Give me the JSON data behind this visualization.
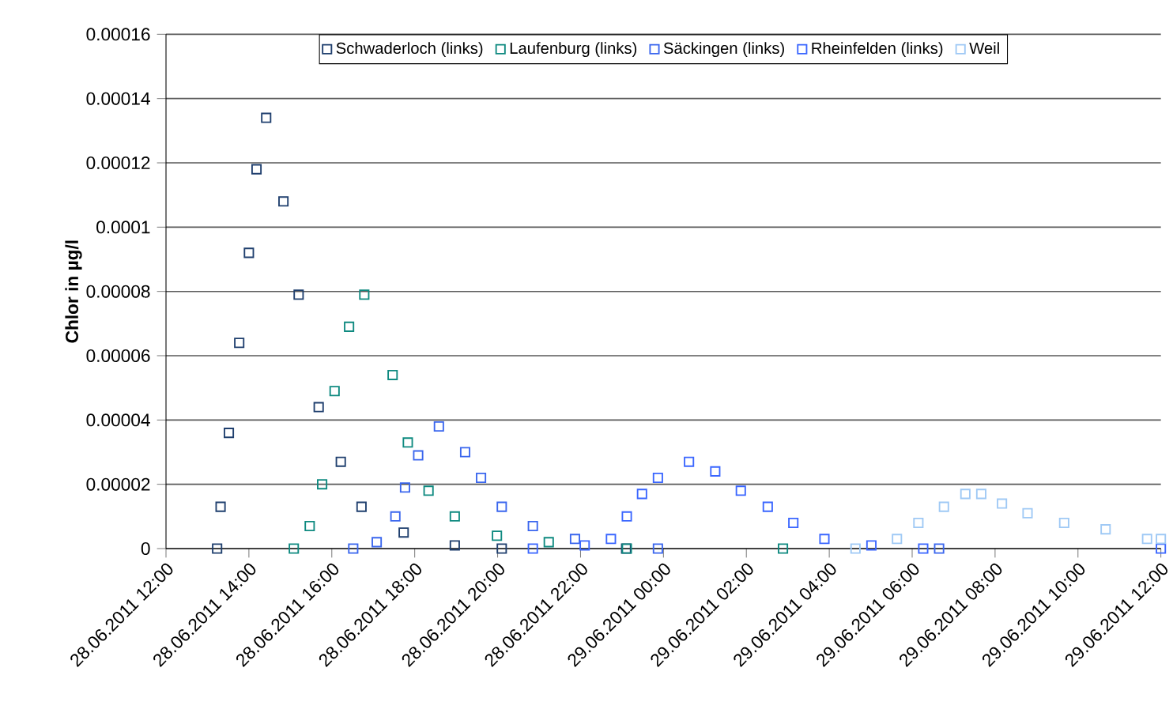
{
  "chart_data": {
    "type": "scatter",
    "ylabel": "Chlor in µg/l",
    "xlim": [
      "2011-06-28T12:00",
      "2011-06-29T12:00"
    ],
    "ylim": [
      0,
      0.00016
    ],
    "xticks": [
      {
        "value": "2011-06-28T12:00",
        "label": "28.06.2011 12:00"
      },
      {
        "value": "2011-06-28T14:00",
        "label": "28.06.2011 14:00"
      },
      {
        "value": "2011-06-28T16:00",
        "label": "28.06.2011 16:00"
      },
      {
        "value": "2011-06-28T18:00",
        "label": "28.06.2011 18:00"
      },
      {
        "value": "2011-06-28T20:00",
        "label": "28.06.2011 20:00"
      },
      {
        "value": "2011-06-28T22:00",
        "label": "28.06.2011 22:00"
      },
      {
        "value": "2011-06-29T00:00",
        "label": "29.06.2011 00:00"
      },
      {
        "value": "2011-06-29T02:00",
        "label": "29.06.2011 02:00"
      },
      {
        "value": "2011-06-29T04:00",
        "label": "29.06.2011 04:00"
      },
      {
        "value": "2011-06-29T06:00",
        "label": "29.06.2011 06:00"
      },
      {
        "value": "2011-06-29T08:00",
        "label": "29.06.2011 08:00"
      },
      {
        "value": "2011-06-29T10:00",
        "label": "29.06.2011 10:00"
      },
      {
        "value": "2011-06-29T12:00",
        "label": "29.06.2011 12:00"
      }
    ],
    "yticks": [
      0,
      {
        "value": 2e-05,
        "label": "0.00002"
      },
      {
        "value": 4e-05,
        "label": "0.00004"
      },
      {
        "value": 6e-05,
        "label": "0.00006"
      },
      {
        "value": 8e-05,
        "label": "0.00008"
      },
      0.0001,
      0.00012,
      0.00014,
      0.00016
    ],
    "grid": "y",
    "legend": "top",
    "marker": "square",
    "series": [
      {
        "name": "Schwaderloch (links)",
        "color": "#1f3f6e",
        "x": [
          "2011-06-28T13:14",
          "2011-06-28T13:19",
          "2011-06-28T13:31",
          "2011-06-28T13:46",
          "2011-06-28T14:00",
          "2011-06-28T14:11",
          "2011-06-28T14:25",
          "2011-06-28T14:50",
          "2011-06-28T15:12",
          "2011-06-28T15:41",
          "2011-06-28T16:13",
          "2011-06-28T16:43",
          "2011-06-28T17:44",
          "2011-06-28T18:58",
          "2011-06-28T20:06",
          "2011-06-28T23:06"
        ],
        "values": [
          0,
          1.3e-05,
          3.6e-05,
          6.4e-05,
          9.2e-05,
          0.000118,
          0.000134,
          0.000108,
          7.9e-05,
          4.4e-05,
          2.7e-05,
          1.3e-05,
          5e-06,
          1e-06,
          0,
          0
        ]
      },
      {
        "name": "Laufenburg (links)",
        "color": "#0f8a80",
        "x": [
          "2011-06-28T15:05",
          "2011-06-28T15:28",
          "2011-06-28T15:46",
          "2011-06-28T16:04",
          "2011-06-28T16:25",
          "2011-06-28T16:47",
          "2011-06-28T17:28",
          "2011-06-28T17:50",
          "2011-06-28T18:20",
          "2011-06-28T18:58",
          "2011-06-28T19:59",
          "2011-06-28T21:14",
          "2011-06-28T23:07",
          "2011-06-29T02:53"
        ],
        "values": [
          0,
          7e-06,
          2e-05,
          4.9e-05,
          6.9e-05,
          7.9e-05,
          5.4e-05,
          3.3e-05,
          1.8e-05,
          1e-05,
          4e-06,
          2e-06,
          0,
          0
        ]
      },
      {
        "name": "Säckingen (links)",
        "color": "#3a66ee",
        "x": [
          "2011-06-28T16:31",
          "2011-06-28T17:05",
          "2011-06-28T17:32",
          "2011-06-28T17:46",
          "2011-06-28T18:05",
          "2011-06-28T18:35",
          "2011-06-28T19:13",
          "2011-06-28T19:36",
          "2011-06-28T20:06",
          "2011-06-28T20:51",
          "2011-06-28T21:52",
          "2011-06-28T23:52",
          "2011-06-29T06:39"
        ],
        "values": [
          0,
          2e-06,
          1e-05,
          1.9e-05,
          2.9e-05,
          3.8e-05,
          3e-05,
          2.2e-05,
          1.3e-05,
          7e-06,
          3e-06,
          0,
          0
        ]
      },
      {
        "name": "Rheinfelden (links)",
        "color": "#3a66ff",
        "x": [
          "2011-06-28T20:51",
          "2011-06-28T22:06",
          "2011-06-28T22:44",
          "2011-06-28T23:07",
          "2011-06-28T23:29",
          "2011-06-28T23:52",
          "2011-06-29T00:37",
          "2011-06-29T01:15",
          "2011-06-29T01:52",
          "2011-06-29T02:31",
          "2011-06-29T03:08",
          "2011-06-29T03:53",
          "2011-06-29T05:01",
          "2011-06-29T06:16",
          "2011-06-29T12:00"
        ],
        "values": [
          0,
          1e-06,
          3e-06,
          1e-05,
          1.7e-05,
          2.2e-05,
          2.7e-05,
          2.4e-05,
          1.8e-05,
          1.3e-05,
          8e-06,
          3e-06,
          1e-06,
          0,
          0
        ]
      },
      {
        "name": "Weil",
        "color": "#9fc9f5",
        "x": [
          "2011-06-29T04:38",
          "2011-06-29T05:38",
          "2011-06-29T06:09",
          "2011-06-29T06:46",
          "2011-06-29T07:17",
          "2011-06-29T07:40",
          "2011-06-29T08:10",
          "2011-06-29T08:47",
          "2011-06-29T09:40",
          "2011-06-29T10:40",
          "2011-06-29T11:40",
          "2011-06-29T12:00"
        ],
        "values": [
          0,
          3e-06,
          8e-06,
          1.3e-05,
          1.7e-05,
          1.7e-05,
          1.4e-05,
          1.1e-05,
          8e-06,
          6e-06,
          3e-06,
          3e-06
        ]
      }
    ]
  }
}
